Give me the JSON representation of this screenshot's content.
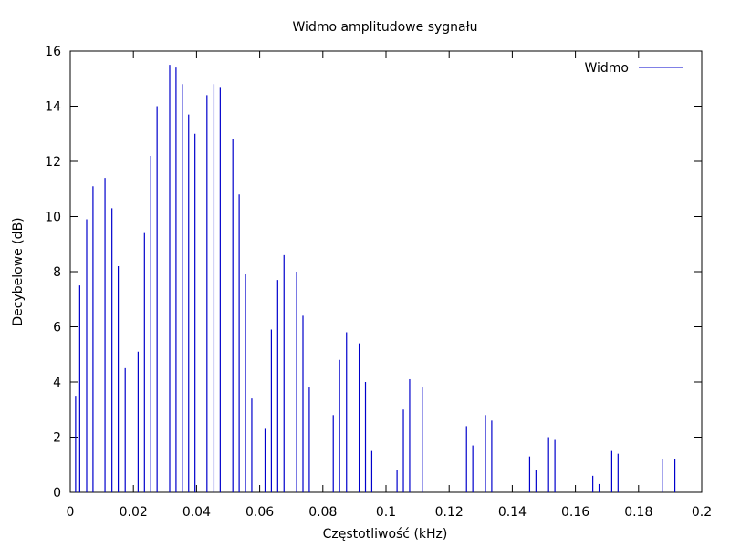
{
  "chart_data": {
    "type": "bar",
    "title": "Widmo amplitudowe sygnału",
    "xlabel": "Częstotliwość (kHz)",
    "ylabel": "Decybelowe (dB)",
    "xlim": [
      0,
      0.2
    ],
    "ylim": [
      0,
      16
    ],
    "grid": false,
    "legend_position": "top-right",
    "x_ticks": [
      "0",
      "0.02",
      "0.04",
      "0.06",
      "0.08",
      "0.1",
      "0.12",
      "0.14",
      "0.16",
      "0.18",
      "0.2"
    ],
    "y_ticks": [
      "0",
      "2",
      "4",
      "6",
      "8",
      "10",
      "12",
      "14",
      "16"
    ],
    "series": [
      {
        "name": "Widmo",
        "color": "#0000cc",
        "x": [
          0.0017,
          0.003,
          0.0052,
          0.0072,
          0.011,
          0.0132,
          0.0152,
          0.0174,
          0.0215,
          0.0235,
          0.0255,
          0.0275,
          0.0315,
          0.0335,
          0.0355,
          0.0375,
          0.0395,
          0.0433,
          0.0455,
          0.0475,
          0.0515,
          0.0535,
          0.0555,
          0.0575,
          0.0617,
          0.0637,
          0.0657,
          0.0677,
          0.0717,
          0.0737,
          0.0757,
          0.0833,
          0.0853,
          0.0875,
          0.0915,
          0.0935,
          0.0955,
          0.1035,
          0.1055,
          0.1075,
          0.1115,
          0.1255,
          0.1275,
          0.1315,
          0.1335,
          0.1455,
          0.1475,
          0.1515,
          0.1535,
          0.1655,
          0.1675,
          0.1715,
          0.1735,
          0.1875,
          0.1915
        ],
        "values": [
          3.5,
          7.5,
          9.9,
          11.1,
          11.4,
          10.3,
          8.2,
          4.5,
          5.1,
          9.4,
          12.2,
          14.0,
          15.5,
          15.4,
          14.8,
          13.7,
          13.0,
          14.4,
          14.8,
          14.7,
          12.8,
          10.8,
          7.9,
          3.4,
          2.3,
          5.9,
          7.7,
          8.6,
          8.0,
          6.4,
          3.8,
          2.8,
          4.8,
          5.8,
          5.4,
          4.0,
          1.5,
          0.8,
          3.0,
          4.1,
          3.8,
          2.4,
          1.7,
          2.8,
          2.6,
          1.3,
          0.8,
          2.0,
          1.9,
          0.6,
          0.3,
          1.5,
          1.4,
          1.2,
          1.2
        ]
      }
    ]
  }
}
